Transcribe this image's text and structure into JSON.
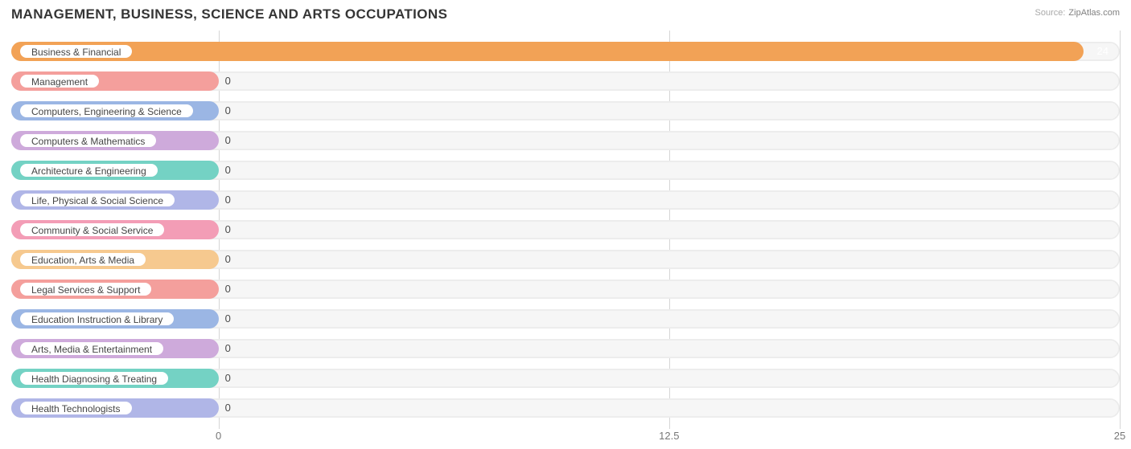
{
  "title": "MANAGEMENT, BUSINESS, SCIENCE AND ARTS OCCUPATIONS",
  "source_label": "Source:",
  "source_site": "ZipAtlas.com",
  "chart": {
    "type": "bar-horizontal",
    "background_color": "#ffffff",
    "track_bg": "#f6f6f6",
    "track_border": "#ececec",
    "grid_color": "#d6d6d6",
    "xmin": 0,
    "xmax": 25,
    "xticks": [
      0,
      12.5,
      25
    ],
    "xtick_labels": [
      "0",
      "12.5",
      "25"
    ],
    "label_fill_x": 5.75,
    "axis_font_size": 13,
    "label_font_size": 12,
    "value_font_size": 13,
    "bars": [
      {
        "label": "Business & Financial",
        "value": 24,
        "bar_color": "#f2a256",
        "border_color": "#f2a256",
        "value_label_inside": true
      },
      {
        "label": "Management",
        "value": 0,
        "bar_color": "#f49f9c",
        "border_color": "#f49f9c",
        "value_label_inside": false
      },
      {
        "label": "Computers, Engineering & Science",
        "value": 0,
        "bar_color": "#9bb6e4",
        "border_color": "#9bb6e4",
        "value_label_inside": false
      },
      {
        "label": "Computers & Mathematics",
        "value": 0,
        "bar_color": "#ceaadb",
        "border_color": "#ceaadb",
        "value_label_inside": false
      },
      {
        "label": "Architecture & Engineering",
        "value": 0,
        "bar_color": "#74d2c4",
        "border_color": "#74d2c4",
        "value_label_inside": false
      },
      {
        "label": "Life, Physical & Social Science",
        "value": 0,
        "bar_color": "#b0b6e7",
        "border_color": "#b0b6e7",
        "value_label_inside": false
      },
      {
        "label": "Community & Social Service",
        "value": 0,
        "bar_color": "#f39db6",
        "border_color": "#f39db6",
        "value_label_inside": false
      },
      {
        "label": "Education, Arts & Media",
        "value": 0,
        "bar_color": "#f6c98f",
        "border_color": "#f6c98f",
        "value_label_inside": false
      },
      {
        "label": "Legal Services & Support",
        "value": 0,
        "bar_color": "#f49f9c",
        "border_color": "#f49f9c",
        "value_label_inside": false
      },
      {
        "label": "Education Instruction & Library",
        "value": 0,
        "bar_color": "#9bb6e4",
        "border_color": "#9bb6e4",
        "value_label_inside": false
      },
      {
        "label": "Arts, Media & Entertainment",
        "value": 0,
        "bar_color": "#ceaadb",
        "border_color": "#ceaadb",
        "value_label_inside": false
      },
      {
        "label": "Health Diagnosing & Treating",
        "value": 0,
        "bar_color": "#74d2c4",
        "border_color": "#74d2c4",
        "value_label_inside": false
      },
      {
        "label": "Health Technologists",
        "value": 0,
        "bar_color": "#b0b6e7",
        "border_color": "#b0b6e7",
        "value_label_inside": false
      }
    ]
  }
}
